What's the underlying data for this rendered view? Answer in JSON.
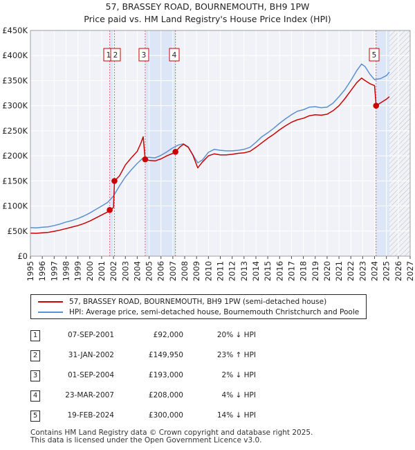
{
  "header": {
    "title_line1": "57, BRASSEY ROAD, BOURNEMOUTH, BH9 1PW",
    "title_line2": "Price paid vs. HM Land Registry's House Price Index (HPI)"
  },
  "legend": {
    "items": [
      {
        "label": "57, BRASSEY ROAD, BOURNEMOUTH, BH9 1PW (semi-detached house)",
        "color": "#cc0000"
      },
      {
        "label": "HPI: Average price, semi-detached house, Bournemouth Christchurch and Poole",
        "color": "#5b8fd0"
      }
    ]
  },
  "sales_table": [
    {
      "num": "1",
      "date": "07-SEP-2001",
      "price": "£92,000",
      "hpi": "20% ↓ HPI"
    },
    {
      "num": "2",
      "date": "31-JAN-2002",
      "price": "£149,950",
      "hpi": "23% ↑ HPI"
    },
    {
      "num": "3",
      "date": "01-SEP-2004",
      "price": "£193,000",
      "hpi": "2% ↓ HPI"
    },
    {
      "num": "4",
      "date": "23-MAR-2007",
      "price": "£208,000",
      "hpi": "4% ↓ HPI"
    },
    {
      "num": "5",
      "date": "19-FEB-2024",
      "price": "£300,000",
      "hpi": "14% ↓ HPI"
    }
  ],
  "footer": {
    "line1": "Contains HM Land Registry data © Crown copyright and database right 2025.",
    "line2": "This data is licensed under the Open Government Licence v3.0."
  },
  "chart_data": {
    "type": "line",
    "title": "57, BRASSEY ROAD, BOURNEMOUTH, BH9 1PW",
    "subtitle": "Price paid vs. HM Land Registry's House Price Index (HPI)",
    "xlabel": "",
    "ylabel": "",
    "xlim": [
      1995,
      2027
    ],
    "ylim": [
      0,
      450000
    ],
    "x_ticks": [
      1995,
      1996,
      1997,
      1998,
      1999,
      2000,
      2001,
      2002,
      2003,
      2004,
      2005,
      2006,
      2007,
      2008,
      2009,
      2010,
      2011,
      2012,
      2013,
      2014,
      2015,
      2016,
      2017,
      2018,
      2019,
      2020,
      2021,
      2022,
      2023,
      2024,
      2025,
      2026,
      2027
    ],
    "y_ticks": [
      {
        "value": 0,
        "label": "£0"
      },
      {
        "value": 50000,
        "label": "£50K"
      },
      {
        "value": 100000,
        "label": "£100K"
      },
      {
        "value": 150000,
        "label": "£150K"
      },
      {
        "value": 200000,
        "label": "£200K"
      },
      {
        "value": 250000,
        "label": "£250K"
      },
      {
        "value": 300000,
        "label": "£300K"
      },
      {
        "value": 350000,
        "label": "£350K"
      },
      {
        "value": 400000,
        "label": "£400K"
      },
      {
        "value": 450000,
        "label": "£450K"
      }
    ],
    "grid": true,
    "shaded_periods": [
      [
        2001.68,
        2002.08
      ],
      [
        2004.67,
        2007.22
      ],
      [
        2024.13,
        2025.25
      ]
    ],
    "hatched_region": [
      2025.25,
      2027
    ],
    "series": [
      {
        "name": "HPI: Average price, semi-detached house, Bournemouth Christchurch and Poole",
        "color": "#5b8fd0",
        "points": [
          [
            1995.0,
            57000
          ],
          [
            1995.5,
            56500
          ],
          [
            1996.0,
            57500
          ],
          [
            1996.5,
            58500
          ],
          [
            1997.0,
            61000
          ],
          [
            1997.5,
            64000
          ],
          [
            1998.0,
            68000
          ],
          [
            1998.5,
            71000
          ],
          [
            1999.0,
            75000
          ],
          [
            1999.5,
            80000
          ],
          [
            2000.0,
            86000
          ],
          [
            2000.5,
            93000
          ],
          [
            2001.0,
            100000
          ],
          [
            2001.5,
            107000
          ],
          [
            2002.0,
            120000
          ],
          [
            2002.5,
            140000
          ],
          [
            2003.0,
            158000
          ],
          [
            2003.5,
            172000
          ],
          [
            2004.0,
            185000
          ],
          [
            2004.5,
            196000
          ],
          [
            2005.0,
            197000
          ],
          [
            2005.5,
            196000
          ],
          [
            2006.0,
            201000
          ],
          [
            2006.5,
            208000
          ],
          [
            2007.0,
            216000
          ],
          [
            2007.5,
            222000
          ],
          [
            2007.9,
            224000
          ],
          [
            2008.3,
            218000
          ],
          [
            2008.7,
            202000
          ],
          [
            2009.1,
            186000
          ],
          [
            2009.5,
            192000
          ],
          [
            2010.0,
            207000
          ],
          [
            2010.5,
            213000
          ],
          [
            2011.0,
            211000
          ],
          [
            2011.5,
            210000
          ],
          [
            2012.0,
            210000
          ],
          [
            2012.5,
            211000
          ],
          [
            2013.0,
            213000
          ],
          [
            2013.5,
            217000
          ],
          [
            2014.0,
            227000
          ],
          [
            2014.5,
            238000
          ],
          [
            2015.0,
            246000
          ],
          [
            2015.5,
            255000
          ],
          [
            2016.0,
            265000
          ],
          [
            2016.5,
            274000
          ],
          [
            2017.0,
            282000
          ],
          [
            2017.5,
            289000
          ],
          [
            2018.0,
            292000
          ],
          [
            2018.5,
            297000
          ],
          [
            2019.0,
            298000
          ],
          [
            2019.5,
            296000
          ],
          [
            2020.0,
            297000
          ],
          [
            2020.5,
            305000
          ],
          [
            2021.0,
            318000
          ],
          [
            2021.5,
            332000
          ],
          [
            2022.0,
            350000
          ],
          [
            2022.5,
            370000
          ],
          [
            2022.9,
            383000
          ],
          [
            2023.2,
            378000
          ],
          [
            2023.6,
            363000
          ],
          [
            2024.0,
            352000
          ],
          [
            2024.5,
            354000
          ],
          [
            2025.0,
            360000
          ],
          [
            2025.25,
            367000
          ]
        ]
      },
      {
        "name": "57, BRASSEY ROAD, BOURNEMOUTH, BH9 1PW (semi-detached house)",
        "color": "#cc0000",
        "points": [
          [
            1995.0,
            46000
          ],
          [
            1995.5,
            45500
          ],
          [
            1996.0,
            46500
          ],
          [
            1996.5,
            47500
          ],
          [
            1997.0,
            49500
          ],
          [
            1997.5,
            52000
          ],
          [
            1998.0,
            55000
          ],
          [
            1998.5,
            58000
          ],
          [
            1999.0,
            61000
          ],
          [
            1999.5,
            65000
          ],
          [
            2000.0,
            70000
          ],
          [
            2000.5,
            76000
          ],
          [
            2001.0,
            82000
          ],
          [
            2001.5,
            88000
          ],
          [
            2001.68,
            92000
          ],
          [
            2001.8,
            93000
          ],
          [
            2002.0,
            97000
          ],
          [
            2002.08,
            149950
          ],
          [
            2002.5,
            160000
          ],
          [
            2003.0,
            182000
          ],
          [
            2003.5,
            196000
          ],
          [
            2004.0,
            209000
          ],
          [
            2004.3,
            225000
          ],
          [
            2004.5,
            238000
          ],
          [
            2004.67,
            193000
          ],
          [
            2005.0,
            191000
          ],
          [
            2005.5,
            190000
          ],
          [
            2006.0,
            194000
          ],
          [
            2006.5,
            200000
          ],
          [
            2007.0,
            205000
          ],
          [
            2007.22,
            208000
          ],
          [
            2007.6,
            218000
          ],
          [
            2007.9,
            223000
          ],
          [
            2008.3,
            217000
          ],
          [
            2008.7,
            201000
          ],
          [
            2009.1,
            176000
          ],
          [
            2009.5,
            188000
          ],
          [
            2010.0,
            200000
          ],
          [
            2010.5,
            204000
          ],
          [
            2011.0,
            202000
          ],
          [
            2011.5,
            202000
          ],
          [
            2012.0,
            203000
          ],
          [
            2012.5,
            205000
          ],
          [
            2013.0,
            206000
          ],
          [
            2013.5,
            209000
          ],
          [
            2014.0,
            217000
          ],
          [
            2014.5,
            226000
          ],
          [
            2015.0,
            235000
          ],
          [
            2015.5,
            243000
          ],
          [
            2016.0,
            252000
          ],
          [
            2016.5,
            260000
          ],
          [
            2017.0,
            267000
          ],
          [
            2017.5,
            272000
          ],
          [
            2018.0,
            275000
          ],
          [
            2018.5,
            280000
          ],
          [
            2019.0,
            282000
          ],
          [
            2019.5,
            281000
          ],
          [
            2020.0,
            283000
          ],
          [
            2020.5,
            290000
          ],
          [
            2021.0,
            300000
          ],
          [
            2021.5,
            314000
          ],
          [
            2022.0,
            330000
          ],
          [
            2022.5,
            346000
          ],
          [
            2022.9,
            355000
          ],
          [
            2023.2,
            350000
          ],
          [
            2023.6,
            344000
          ],
          [
            2024.0,
            340000
          ],
          [
            2024.13,
            300000
          ],
          [
            2024.4,
            304000
          ],
          [
            2024.8,
            310000
          ],
          [
            2025.0,
            313000
          ],
          [
            2025.25,
            318000
          ]
        ]
      }
    ],
    "sale_markers": [
      {
        "num": "1",
        "year": 2001.68,
        "price": 92000
      },
      {
        "num": "2",
        "year": 2002.08,
        "price": 149950
      },
      {
        "num": "3",
        "year": 2004.67,
        "price": 193000
      },
      {
        "num": "4",
        "year": 2007.22,
        "price": 208000
      },
      {
        "num": "5",
        "year": 2024.13,
        "price": 300000
      }
    ]
  }
}
